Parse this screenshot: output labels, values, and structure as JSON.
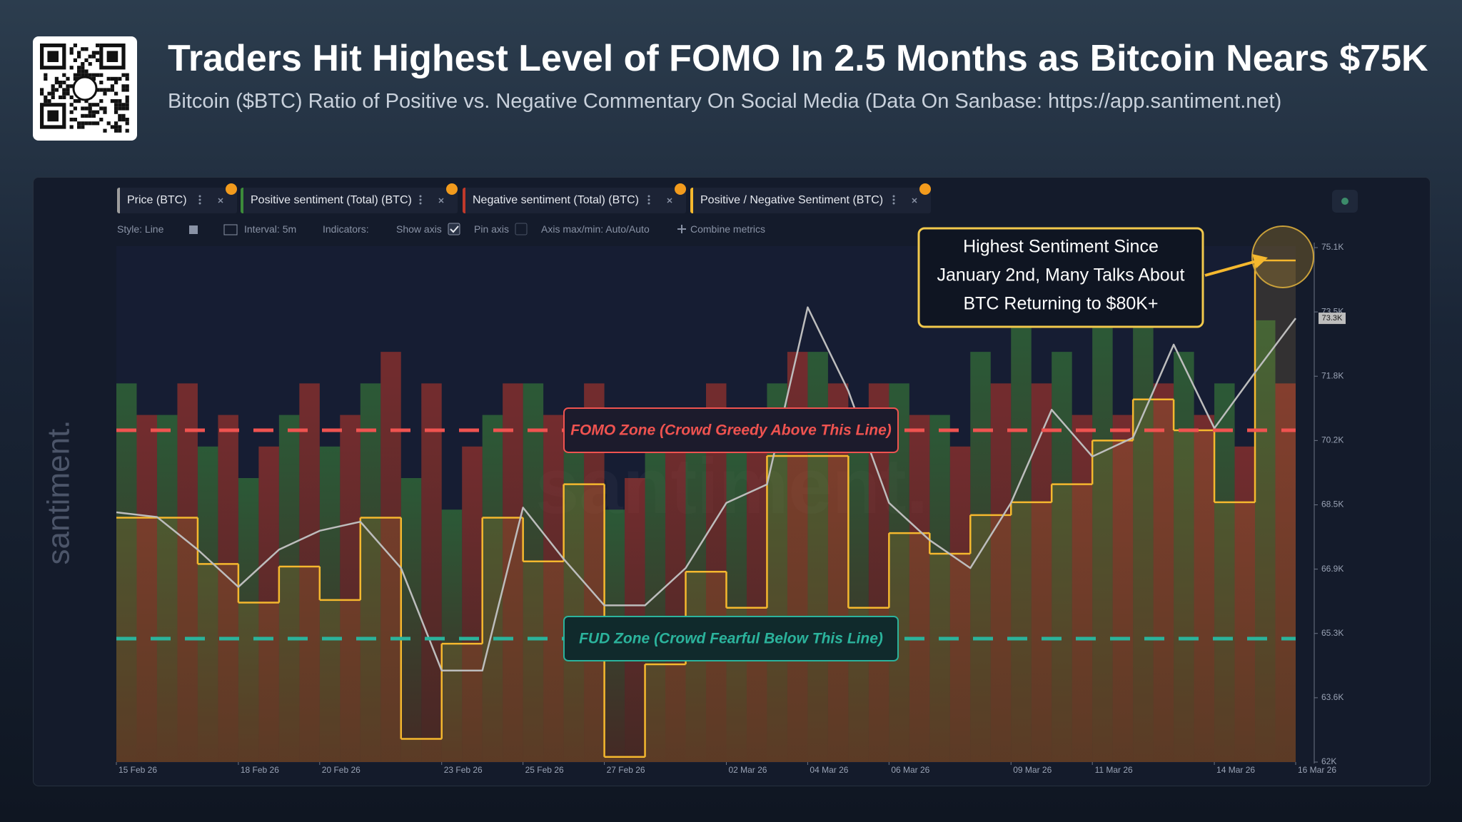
{
  "header": {
    "title": "Traders Hit Highest Level of FOMO In 2.5 Months as Bitcoin Nears $75K",
    "subtitle": "Bitcoin ($BTC) Ratio of Positive vs. Negative Commentary On Social Media (Data On Sanbase: https://app.santiment.net)"
  },
  "toolbar": {
    "style": "Style: Line",
    "interval": "Interval: 5m",
    "indicators": "Indicators:",
    "show_axis": "Show axis",
    "pin_axis": "Pin axis",
    "axis_range": "Axis max/min: Auto/Auto",
    "combine": "Combine metrics"
  },
  "chart_data": {
    "type": "line",
    "x": [
      "2026-02-15",
      "2026-02-16",
      "2026-02-17",
      "2026-02-18",
      "2026-02-19",
      "2026-02-20",
      "2026-02-21",
      "2026-02-22",
      "2026-02-23",
      "2026-02-24",
      "2026-02-25",
      "2026-02-26",
      "2026-02-27",
      "2026-02-28",
      "2026-03-01",
      "2026-03-02",
      "2026-03-03",
      "2026-03-04",
      "2026-03-05",
      "2026-03-06",
      "2026-03-07",
      "2026-03-08",
      "2026-03-09",
      "2026-03-10",
      "2026-03-11",
      "2026-03-12",
      "2026-03-13",
      "2026-03-14",
      "2026-03-15",
      "2026-03-16"
    ],
    "xlim": [
      "2026-02-15",
      "2026-03-16"
    ],
    "xticks": [
      {
        "value": "2026-02-15",
        "label": "15 Feb 26"
      },
      {
        "value": "2026-02-18",
        "label": "18 Feb 26"
      },
      {
        "value": "2026-02-20",
        "label": "20 Feb 26"
      },
      {
        "value": "2026-02-23",
        "label": "23 Feb 26"
      },
      {
        "value": "2026-02-25",
        "label": "25 Feb 26"
      },
      {
        "value": "2026-02-27",
        "label": "27 Feb 26"
      },
      {
        "value": "2026-03-02",
        "label": "02 Mar 26"
      },
      {
        "value": "2026-03-04",
        "label": "04 Mar 26"
      },
      {
        "value": "2026-03-06",
        "label": "06 Mar 26"
      },
      {
        "value": "2026-03-09",
        "label": "09 Mar 26"
      },
      {
        "value": "2026-03-11",
        "label": "11 Mar 26"
      },
      {
        "value": "2026-03-14",
        "label": "14 Mar 26"
      },
      {
        "value": "2026-03-16",
        "label": "16 Mar 26"
      }
    ],
    "ylim": [
      62000,
      75100
    ],
    "yticks": [
      {
        "value": 62000,
        "label": "62K"
      },
      {
        "value": 63637.5,
        "label": "63.6K"
      },
      {
        "value": 65275,
        "label": "65.3K"
      },
      {
        "value": 66912.5,
        "label": "66.9K"
      },
      {
        "value": 68550,
        "label": "68.5K"
      },
      {
        "value": 70187.5,
        "label": "70.2K"
      },
      {
        "value": 71825,
        "label": "71.8K"
      },
      {
        "value": 73462.5,
        "label": "73.5K"
      },
      {
        "value": 75100,
        "label": "75.1K"
      }
    ],
    "y2lim": [
      1,
      3
    ],
    "grid": false,
    "series": [
      {
        "name": "Price (BTC)",
        "kind": "line",
        "color": "#bdbdbd",
        "axis": "y",
        "values": [
          68360,
          68240,
          67410,
          66460,
          67410,
          67890,
          68120,
          66940,
          64330,
          64330,
          68480,
          67170,
          65990,
          65990,
          66940,
          68600,
          69070,
          73580,
          71450,
          68600,
          67650,
          66940,
          68600,
          70970,
          69780,
          70260,
          72630,
          70500,
          71920,
          73300
        ]
      },
      {
        "name": "Positive sentiment (Total) (BTC)",
        "kind": "bar",
        "color": "#3c8b3a",
        "values": [
          60,
          55,
          50,
          45,
          55,
          50,
          60,
          45,
          40,
          55,
          60,
          55,
          40,
          50,
          55,
          50,
          60,
          65,
          55,
          60,
          55,
          65,
          70,
          65,
          70,
          75,
          65,
          60,
          70,
          null
        ]
      },
      {
        "name": "Negative sentiment (Total) (BTC)",
        "kind": "bar",
        "color": "#c0392b",
        "values": [
          55,
          60,
          55,
          50,
          60,
          55,
          65,
          60,
          50,
          60,
          55,
          60,
          45,
          55,
          60,
          55,
          65,
          60,
          60,
          55,
          50,
          60,
          60,
          55,
          55,
          60,
          55,
          50,
          60,
          null
        ]
      },
      {
        "name": "Positive / Negative Sentiment (BTC)",
        "kind": "step",
        "color": "#f5b82e",
        "axis": "y2",
        "values": [
          1.95,
          1.95,
          1.77,
          1.62,
          1.76,
          1.63,
          1.95,
          1.09,
          1.46,
          1.95,
          1.78,
          2.08,
          1.02,
          1.38,
          1.74,
          1.6,
          2.19,
          2.19,
          1.6,
          1.89,
          1.81,
          1.96,
          2.01,
          2.08,
          2.25,
          2.41,
          2.29,
          2.01,
          2.95,
          null
        ]
      }
    ],
    "price_label": {
      "value": 73300,
      "label": "73.3K"
    },
    "annotations": [
      {
        "text": "FOMO Zone (Crowd Greedy Above This Line)",
        "value": 2.29,
        "color": "#ef5350"
      },
      {
        "text": "FUD Zone (Crowd Fearful Below This Line)",
        "value": 1.48,
        "color": "#2bb39c"
      }
    ],
    "callout": [
      "Highest Sentiment Since",
      "January 2nd, Many Talks About",
      "BTC Returning to $80K+"
    ],
    "watermark": "santiment."
  }
}
